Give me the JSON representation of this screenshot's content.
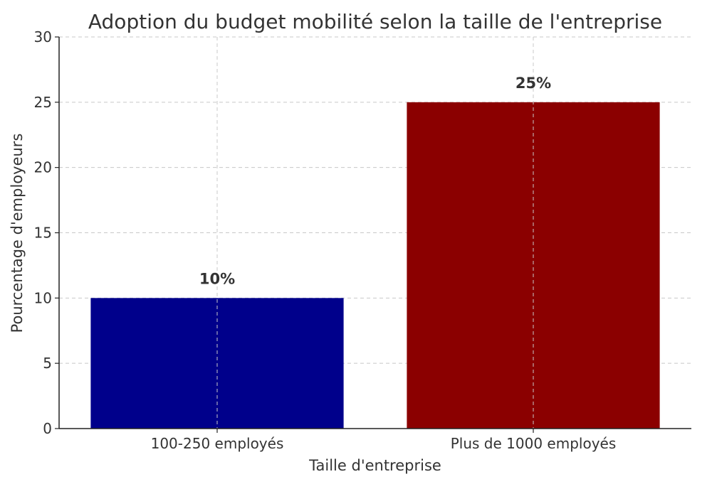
{
  "chart_data": {
    "type": "bar",
    "title": "Adoption du budget mobilité selon la taille de l'entreprise",
    "xlabel": "Taille d'entreprise",
    "ylabel": "Pourcentage d'employeurs",
    "categories": [
      "100-250 employés",
      "Plus de 1000 employés"
    ],
    "values": [
      10,
      25
    ],
    "data_labels": [
      "10%",
      "25%"
    ],
    "colors": [
      "#00008b",
      "#8b0000"
    ],
    "ylim": [
      0,
      30
    ],
    "yticks": [
      0,
      5,
      10,
      15,
      20,
      25,
      30
    ],
    "grid": true
  }
}
